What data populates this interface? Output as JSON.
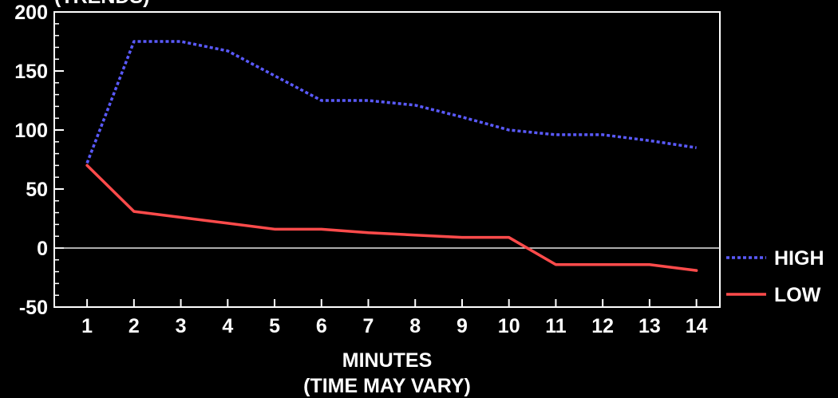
{
  "chart_data": {
    "type": "line",
    "title": "(TRENDS)",
    "xlabel": "MINUTES",
    "xlabel_note": "(TIME MAY VARY)",
    "ylabel": "",
    "x": [
      1,
      2,
      3,
      4,
      5,
      6,
      7,
      8,
      9,
      10,
      11,
      12,
      13,
      14
    ],
    "xlim": [
      0.3,
      14.5
    ],
    "ylim": [
      -50,
      200
    ],
    "yticks": [
      -50,
      0,
      50,
      100,
      150,
      200
    ],
    "series": [
      {
        "name": "HIGH",
        "color": "#5a5aff",
        "style": "dashed",
        "values": [
          72,
          175,
          175,
          167,
          146,
          125,
          125,
          121,
          111,
          100,
          96,
          96,
          91,
          85
        ]
      },
      {
        "name": "LOW",
        "color": "#ff4b4b",
        "style": "solid",
        "values": [
          70,
          31,
          26,
          21,
          16,
          16,
          13,
          11,
          9,
          9,
          -14,
          -14,
          -14,
          -19
        ]
      }
    ],
    "zero_line": true,
    "grid": false,
    "legend_position": "right"
  }
}
